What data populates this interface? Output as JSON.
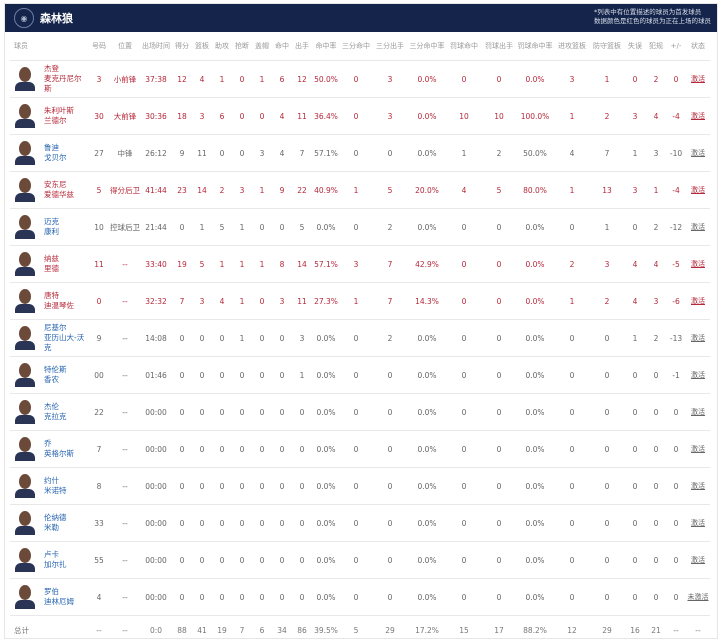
{
  "header": {
    "team": "森林狼",
    "logo_icon": "timberwolves-logo-icon",
    "note_line1": "*列表中有位置描述的球员为首发球员",
    "note_line2": "数据颜色是红色的球员为正在上场的球员"
  },
  "colors": {
    "header_bg": "#14244a",
    "active": "#b5283a",
    "name_blue": "#2563b0"
  },
  "columns": [
    "球员",
    "号码",
    "位置",
    "出场时间",
    "得分",
    "篮板",
    "助攻",
    "抢断",
    "盖帽",
    "命中",
    "出手",
    "命中率",
    "三分命中",
    "三分出手",
    "三分命中率",
    "罚球命中",
    "罚球出手",
    "罚球命中率",
    "进攻篮板",
    "防守篮板",
    "失误",
    "犯规",
    "+/-",
    "状态"
  ],
  "players": [
    {
      "on": true,
      "name1": "杰登",
      "name2": "麦克丹尼尔斯",
      "s": [
        "3",
        "小前锋",
        "37:38",
        "12",
        "4",
        "1",
        "0",
        "1",
        "6",
        "12",
        "50.0%",
        "0",
        "3",
        "0.0%",
        "0",
        "0",
        "0.0%",
        "3",
        "1",
        "0",
        "2",
        "0",
        "激活"
      ]
    },
    {
      "on": true,
      "name1": "朱利叶斯",
      "name2": "兰德尔",
      "s": [
        "30",
        "大前锋",
        "30:36",
        "18",
        "3",
        "6",
        "0",
        "0",
        "4",
        "11",
        "36.4%",
        "0",
        "3",
        "0.0%",
        "10",
        "10",
        "100.0%",
        "1",
        "2",
        "3",
        "4",
        "-4",
        "激活"
      ]
    },
    {
      "on": false,
      "name1": "鲁迪",
      "name2": "戈贝尔",
      "s": [
        "27",
        "中锋",
        "26:12",
        "9",
        "11",
        "0",
        "0",
        "3",
        "4",
        "7",
        "57.1%",
        "0",
        "0",
        "0.0%",
        "1",
        "2",
        "50.0%",
        "4",
        "7",
        "1",
        "3",
        "-10",
        "激活"
      ]
    },
    {
      "on": true,
      "name1": "安东尼",
      "name2": "爱德华兹",
      "s": [
        "5",
        "得分后卫",
        "41:44",
        "23",
        "14",
        "2",
        "3",
        "1",
        "9",
        "22",
        "40.9%",
        "1",
        "5",
        "20.0%",
        "4",
        "5",
        "80.0%",
        "1",
        "13",
        "3",
        "1",
        "-4",
        "激活"
      ]
    },
    {
      "on": false,
      "name1": "迈克",
      "name2": "康利",
      "s": [
        "10",
        "控球后卫",
        "21:44",
        "0",
        "1",
        "5",
        "1",
        "0",
        "0",
        "5",
        "0.0%",
        "0",
        "2",
        "0.0%",
        "0",
        "0",
        "0.0%",
        "0",
        "1",
        "0",
        "2",
        "-12",
        "激活"
      ]
    },
    {
      "on": true,
      "name1": "纳兹",
      "name2": "里德",
      "s": [
        "11",
        "--",
        "33:40",
        "19",
        "5",
        "1",
        "1",
        "1",
        "8",
        "14",
        "57.1%",
        "3",
        "7",
        "42.9%",
        "0",
        "0",
        "0.0%",
        "2",
        "3",
        "4",
        "4",
        "-5",
        "激活"
      ]
    },
    {
      "on": true,
      "name1": "唐特",
      "name2": "迪温琴佐",
      "s": [
        "0",
        "--",
        "32:32",
        "7",
        "3",
        "4",
        "1",
        "0",
        "3",
        "11",
        "27.3%",
        "1",
        "7",
        "14.3%",
        "0",
        "0",
        "0.0%",
        "1",
        "2",
        "4",
        "3",
        "-6",
        "激活"
      ]
    },
    {
      "on": false,
      "name1": "尼基尔",
      "name2": "亚历山大-沃克",
      "s": [
        "9",
        "--",
        "14:08",
        "0",
        "0",
        "0",
        "1",
        "0",
        "0",
        "3",
        "0.0%",
        "0",
        "2",
        "0.0%",
        "0",
        "0",
        "0.0%",
        "0",
        "0",
        "1",
        "2",
        "-13",
        "激活"
      ]
    },
    {
      "on": false,
      "name1": "特伦斯",
      "name2": "香农",
      "s": [
        "00",
        "--",
        "01:46",
        "0",
        "0",
        "0",
        "0",
        "0",
        "0",
        "1",
        "0.0%",
        "0",
        "0",
        "0.0%",
        "0",
        "0",
        "0.0%",
        "0",
        "0",
        "0",
        "0",
        "-1",
        "激活"
      ]
    },
    {
      "on": false,
      "name1": "杰伦",
      "name2": "克拉克",
      "s": [
        "22",
        "--",
        "00:00",
        "0",
        "0",
        "0",
        "0",
        "0",
        "0",
        "0",
        "0.0%",
        "0",
        "0",
        "0.0%",
        "0",
        "0",
        "0.0%",
        "0",
        "0",
        "0",
        "0",
        "0",
        "激活"
      ]
    },
    {
      "on": false,
      "name1": "乔",
      "name2": "英格尔斯",
      "s": [
        "7",
        "--",
        "00:00",
        "0",
        "0",
        "0",
        "0",
        "0",
        "0",
        "0",
        "0.0%",
        "0",
        "0",
        "0.0%",
        "0",
        "0",
        "0.0%",
        "0",
        "0",
        "0",
        "0",
        "0",
        "激活"
      ]
    },
    {
      "on": false,
      "name1": "约什",
      "name2": "米诺特",
      "s": [
        "8",
        "--",
        "00:00",
        "0",
        "0",
        "0",
        "0",
        "0",
        "0",
        "0",
        "0.0%",
        "0",
        "0",
        "0.0%",
        "0",
        "0",
        "0.0%",
        "0",
        "0",
        "0",
        "0",
        "0",
        "激活"
      ]
    },
    {
      "on": false,
      "name1": "伦纳德",
      "name2": "米勒",
      "s": [
        "33",
        "--",
        "00:00",
        "0",
        "0",
        "0",
        "0",
        "0",
        "0",
        "0",
        "0.0%",
        "0",
        "0",
        "0.0%",
        "0",
        "0",
        "0.0%",
        "0",
        "0",
        "0",
        "0",
        "0",
        "激活"
      ]
    },
    {
      "on": false,
      "name1": "卢卡",
      "name2": "加尔扎",
      "s": [
        "55",
        "--",
        "00:00",
        "0",
        "0",
        "0",
        "0",
        "0",
        "0",
        "0",
        "0.0%",
        "0",
        "0",
        "0.0%",
        "0",
        "0",
        "0.0%",
        "0",
        "0",
        "0",
        "0",
        "0",
        "激活"
      ]
    },
    {
      "on": false,
      "name1": "罗伯",
      "name2": "迪林厄姆",
      "s": [
        "4",
        "--",
        "00:00",
        "0",
        "0",
        "0",
        "0",
        "0",
        "0",
        "0",
        "0.0%",
        "0",
        "0",
        "0.0%",
        "0",
        "0",
        "0.0%",
        "0",
        "0",
        "0",
        "0",
        "0",
        "未激活"
      ]
    }
  ],
  "total": {
    "label": "总计",
    "s": [
      "--",
      "--",
      "0:0",
      "88",
      "41",
      "19",
      "7",
      "6",
      "34",
      "86",
      "39.5%",
      "5",
      "29",
      "17.2%",
      "15",
      "17",
      "88.2%",
      "12",
      "29",
      "16",
      "21",
      "--",
      "--"
    ]
  }
}
